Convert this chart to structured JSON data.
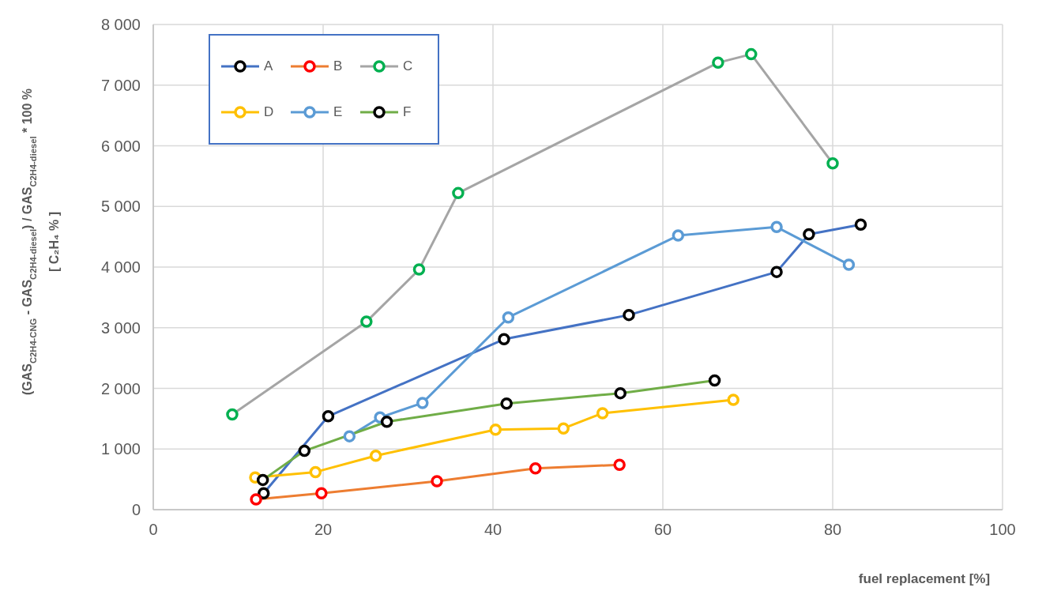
{
  "chart_data": {
    "type": "line",
    "xlabel": "fuel replacement [%]",
    "ylabel": "(GAS$_{C2H4-CNG}$ - GAS$_{C2H4-diesel}$) / GAS$_{C2H4-diesel}$ * 100 %\n[ C₂H₄ % ]",
    "xlim": [
      0,
      100
    ],
    "xticks": [
      0,
      20,
      40,
      60,
      80,
      100
    ],
    "ylim": [
      0,
      8000
    ],
    "yticks": [
      {
        "value": 0,
        "label": "0"
      },
      {
        "value": 1000,
        "label": "1 000"
      },
      {
        "value": 2000,
        "label": "2 000"
      },
      {
        "value": 3000,
        "label": "3 000"
      },
      {
        "value": 4000,
        "label": "4 000"
      },
      {
        "value": 5000,
        "label": "5 000"
      },
      {
        "value": 6000,
        "label": "6 000"
      },
      {
        "value": 7000,
        "label": "7 000"
      },
      {
        "value": 8000,
        "label": "8 000"
      }
    ],
    "grid": true,
    "legend": "top left",
    "marker": "circle",
    "line_style": "solid",
    "series": [
      {
        "name": "A",
        "color": "#4472c4",
        "colors": [
          "#000000",
          "#000000",
          "#000000",
          "#000000",
          "#000000",
          "#000000",
          "#000000"
        ],
        "x": [
          13.0,
          20.6,
          41.3,
          56.0,
          73.4,
          77.2,
          83.3
        ],
        "values": [
          270,
          1540,
          2810,
          3210,
          3920,
          4540,
          4700
        ]
      },
      {
        "name": "B",
        "color": "#ed7d31",
        "colors": [
          "#ff0000",
          "#ff0000",
          "#ff0000",
          "#ff0000",
          "#ff0000"
        ],
        "x": [
          12.1,
          19.8,
          33.4,
          45.0,
          54.9
        ],
        "values": [
          170,
          270,
          470,
          680,
          740
        ]
      },
      {
        "name": "C",
        "color": "#a5a5a5",
        "colors": [
          "#00b050",
          "#00b050",
          "#00b050",
          "#00b050",
          "#00b050",
          "#00b050",
          "#00b050"
        ],
        "x": [
          9.3,
          25.1,
          31.3,
          35.9,
          66.5,
          70.4,
          80.0
        ],
        "values": [
          1570,
          3100,
          3960,
          5220,
          7370,
          7510,
          5710
        ]
      },
      {
        "name": "D",
        "color": "#ffc000",
        "colors": [
          "#ffc000",
          "#ffc000",
          "#ffc000",
          "#ffc000",
          "#ffc000",
          "#ffc000",
          "#ffc000"
        ],
        "x": [
          12.0,
          19.1,
          26.2,
          40.3,
          48.3,
          52.9,
          68.3
        ],
        "values": [
          530,
          620,
          890,
          1320,
          1340,
          1590,
          1810
        ]
      },
      {
        "name": "E",
        "color": "#5b9bd5",
        "colors": [
          "#5b9bd5",
          "#5b9bd5",
          "#5b9bd5",
          "#5b9bd5",
          "#5b9bd5",
          "#5b9bd5",
          "#5b9bd5"
        ],
        "x": [
          23.1,
          26.7,
          31.7,
          41.8,
          61.8,
          73.4,
          81.9
        ],
        "values": [
          1210,
          1520,
          1760,
          3170,
          4520,
          4660,
          4040
        ]
      },
      {
        "name": "F",
        "color": "#70ad47",
        "colors": [
          "#000000",
          "#000000",
          "#000000",
          "#000000",
          "#000000",
          "#000000"
        ],
        "x": [
          12.9,
          17.8,
          27.5,
          41.6,
          55.0,
          66.1
        ],
        "values": [
          490,
          970,
          1450,
          1750,
          1920,
          2130
        ]
      }
    ]
  }
}
